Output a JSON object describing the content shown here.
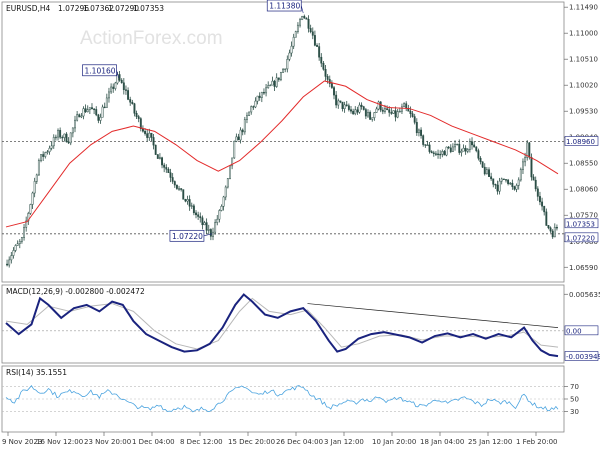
{
  "watermark": "ActionForex.com",
  "chart_data": [
    {
      "type": "candlestick",
      "title": "EURUSD,H4",
      "ohlc_header": [
        "1.07296",
        "1.07362",
        "1.07290",
        "1.07353"
      ],
      "ylim": [
        1.0635,
        1.1155
      ],
      "y_ticks": [
        "1.11490",
        "1.11000",
        "1.10510",
        "1.10020",
        "1.09530",
        "1.09040",
        "1.08550",
        "1.08060",
        "1.07570",
        "1.07080",
        "1.06590"
      ],
      "x_ticks": [
        "9 Nov 2023",
        "16 Nov 12:00",
        "23 Nov 20:00",
        "1 Dec 04:00",
        "8 Dec 12:00",
        "15 Dec 20:00",
        "26 Dec 04:00",
        "3 Jan 12:00",
        "10 Jan 20:00",
        "18 Jan 04:00",
        "25 Jan 12:00",
        "1 Feb 20:00"
      ],
      "price_path": [
        [
          0,
          1.0665
        ],
        [
          4,
          1.069
        ],
        [
          8,
          1.071
        ],
        [
          12,
          1.078
        ],
        [
          16,
          1.086
        ],
        [
          20,
          1.088
        ],
        [
          25,
          1.091
        ],
        [
          30,
          1.09
        ],
        [
          35,
          1.095
        ],
        [
          40,
          1.096
        ],
        [
          44,
          1.094
        ],
        [
          48,
          1.0975
        ],
        [
          53,
          1.1016
        ],
        [
          57,
          1.099
        ],
        [
          61,
          1.095
        ],
        [
          65,
          1.092
        ],
        [
          68,
          1.0905
        ],
        [
          72,
          1.087
        ],
        [
          76,
          1.0845
        ],
        [
          80,
          1.082
        ],
        [
          84,
          1.079
        ],
        [
          88,
          1.077
        ],
        [
          93,
          1.074
        ],
        [
          97,
          1.0722
        ],
        [
          101,
          1.076
        ],
        [
          105,
          1.082
        ],
        [
          108,
          1.089
        ],
        [
          112,
          1.092
        ],
        [
          116,
          1.096
        ],
        [
          120,
          1.098
        ],
        [
          124,
          1.0995
        ],
        [
          128,
          1.101
        ],
        [
          132,
          1.104
        ],
        [
          136,
          1.1085
        ],
        [
          140,
          1.1138
        ],
        [
          144,
          1.111
        ],
        [
          148,
          1.106
        ],
        [
          152,
          1.101
        ],
        [
          156,
          1.097
        ],
        [
          160,
          1.096
        ],
        [
          164,
          1.095
        ],
        [
          168,
          1.096
        ],
        [
          172,
          1.094
        ],
        [
          176,
          1.0965
        ],
        [
          180,
          1.095
        ],
        [
          184,
          1.0945
        ],
        [
          188,
          1.096
        ],
        [
          192,
          1.094
        ],
        [
          196,
          1.09
        ],
        [
          200,
          1.088
        ],
        [
          204,
          1.087
        ],
        [
          208,
          1.088
        ],
        [
          212,
          1.0885
        ],
        [
          216,
          1.088
        ],
        [
          220,
          1.0895
        ],
        [
          224,
          1.085
        ],
        [
          228,
          1.083
        ],
        [
          232,
          1.081
        ],
        [
          236,
          1.083
        ],
        [
          240,
          1.08
        ],
        [
          244,
          1.085
        ],
        [
          246,
          1.089
        ],
        [
          248,
          1.083
        ],
        [
          252,
          1.079
        ],
        [
          255,
          1.074
        ],
        [
          258,
          1.0724
        ],
        [
          260,
          1.0735
        ]
      ],
      "ma_path": [
        [
          0,
          1.0735
        ],
        [
          10,
          1.0745
        ],
        [
          20,
          1.08
        ],
        [
          30,
          1.0855
        ],
        [
          40,
          1.089
        ],
        [
          50,
          1.0915
        ],
        [
          60,
          1.0925
        ],
        [
          70,
          1.0915
        ],
        [
          80,
          1.089
        ],
        [
          90,
          1.086
        ],
        [
          100,
          1.084
        ],
        [
          110,
          1.086
        ],
        [
          120,
          1.0895
        ],
        [
          130,
          1.0935
        ],
        [
          140,
          1.098
        ],
        [
          150,
          1.101
        ],
        [
          160,
          1.1
        ],
        [
          170,
          1.0975
        ],
        [
          180,
          1.096
        ],
        [
          190,
          1.0958
        ],
        [
          200,
          1.0945
        ],
        [
          210,
          1.0925
        ],
        [
          220,
          1.091
        ],
        [
          230,
          1.0895
        ],
        [
          240,
          1.088
        ],
        [
          250,
          1.086
        ],
        [
          260,
          1.0835
        ]
      ],
      "hlines": [
        1.0896,
        1.0722
      ],
      "annotations": [
        {
          "label": "1.10160",
          "bar": 53,
          "value": 1.1016
        },
        {
          "label": "1.11380",
          "bar": 140,
          "value": 1.1138
        },
        {
          "label": "1.07220",
          "bar": 97,
          "value": 1.0722
        }
      ],
      "price_tags": [
        {
          "label": "1.08960",
          "value": 1.0896
        },
        {
          "label": "1.07353",
          "value": 1.07353
        },
        {
          "label": "1.07220",
          "value": 1.0722
        }
      ]
    },
    {
      "type": "line",
      "title": "MACD(12,26,9) -0.002800 -0.002472",
      "ylim": [
        -0.0048,
        0.0066
      ],
      "y_ticks": [
        "0.005635",
        "0.00"
      ],
      "tags": [
        {
          "label": "0.00",
          "value": 0.0
        },
        {
          "label": "-0.003949",
          "value": -0.003949
        }
      ],
      "macd_path": [
        [
          0,
          0.0012
        ],
        [
          6,
          -0.0005
        ],
        [
          12,
          0.001
        ],
        [
          16,
          0.005
        ],
        [
          20,
          0.004
        ],
        [
          26,
          0.002
        ],
        [
          32,
          0.0035
        ],
        [
          38,
          0.004
        ],
        [
          44,
          0.003
        ],
        [
          50,
          0.0045
        ],
        [
          55,
          0.004
        ],
        [
          60,
          0.0015
        ],
        [
          66,
          -0.0005
        ],
        [
          72,
          -0.0015
        ],
        [
          78,
          -0.0025
        ],
        [
          84,
          -0.0032
        ],
        [
          90,
          -0.003
        ],
        [
          96,
          -0.002
        ],
        [
          102,
          0.0005
        ],
        [
          108,
          0.004
        ],
        [
          112,
          0.0056
        ],
        [
          116,
          0.0045
        ],
        [
          122,
          0.0025
        ],
        [
          128,
          0.002
        ],
        [
          134,
          0.003
        ],
        [
          140,
          0.0035
        ],
        [
          146,
          0.0015
        ],
        [
          152,
          -0.0015
        ],
        [
          156,
          -0.0032
        ],
        [
          160,
          -0.0028
        ],
        [
          166,
          -0.0012
        ],
        [
          172,
          -0.0005
        ],
        [
          178,
          -0.0002
        ],
        [
          184,
          -0.0006
        ],
        [
          190,
          -0.001
        ],
        [
          196,
          -0.0018
        ],
        [
          202,
          -0.0008
        ],
        [
          208,
          -0.0004
        ],
        [
          214,
          -0.001
        ],
        [
          220,
          -0.0005
        ],
        [
          226,
          -0.0012
        ],
        [
          232,
          -0.0005
        ],
        [
          238,
          -0.001
        ],
        [
          244,
          0.0005
        ],
        [
          248,
          -0.0015
        ],
        [
          252,
          -0.003
        ],
        [
          256,
          -0.0037
        ],
        [
          260,
          -0.0039
        ]
      ],
      "signal_path": [
        [
          0,
          0.0015
        ],
        [
          10,
          0.001
        ],
        [
          20,
          0.0038
        ],
        [
          30,
          0.003
        ],
        [
          40,
          0.0038
        ],
        [
          50,
          0.0042
        ],
        [
          60,
          0.003
        ],
        [
          70,
          0.0
        ],
        [
          80,
          -0.002
        ],
        [
          90,
          -0.0028
        ],
        [
          100,
          -0.0015
        ],
        [
          110,
          0.003
        ],
        [
          116,
          0.005
        ],
        [
          124,
          0.003
        ],
        [
          134,
          0.0025
        ],
        [
          142,
          0.0032
        ],
        [
          150,
          0.0005
        ],
        [
          158,
          -0.0025
        ],
        [
          166,
          -0.002
        ],
        [
          176,
          -0.0008
        ],
        [
          186,
          -0.0006
        ],
        [
          196,
          -0.0014
        ],
        [
          206,
          -0.0008
        ],
        [
          216,
          -0.0008
        ],
        [
          226,
          -0.001
        ],
        [
          236,
          -0.0008
        ],
        [
          244,
          -0.0002
        ],
        [
          252,
          -0.0022
        ],
        [
          260,
          -0.0025
        ]
      ],
      "trendline": [
        [
          142,
          0.0042
        ],
        [
          260,
          0.0005
        ]
      ]
    },
    {
      "type": "line",
      "title": "RSI(14) 35.1551",
      "ylim": [
        0,
        100
      ],
      "y_ticks": [
        "70",
        "50",
        "30"
      ],
      "rsi_path": [
        [
          0,
          55
        ],
        [
          4,
          45
        ],
        [
          8,
          62
        ],
        [
          12,
          70
        ],
        [
          16,
          60
        ],
        [
          20,
          66
        ],
        [
          24,
          55
        ],
        [
          28,
          60
        ],
        [
          32,
          64
        ],
        [
          36,
          56
        ],
        [
          40,
          61
        ],
        [
          44,
          54
        ],
        [
          48,
          62
        ],
        [
          52,
          58
        ],
        [
          56,
          47
        ],
        [
          60,
          40
        ],
        [
          64,
          36
        ],
        [
          68,
          33
        ],
        [
          72,
          42
        ],
        [
          76,
          30
        ],
        [
          80,
          35
        ],
        [
          84,
          38
        ],
        [
          88,
          28
        ],
        [
          92,
          34
        ],
        [
          96,
          33
        ],
        [
          100,
          42
        ],
        [
          104,
          55
        ],
        [
          108,
          65
        ],
        [
          112,
          72
        ],
        [
          116,
          60
        ],
        [
          120,
          57
        ],
        [
          124,
          64
        ],
        [
          128,
          58
        ],
        [
          132,
          63
        ],
        [
          136,
          68
        ],
        [
          140,
          70
        ],
        [
          144,
          56
        ],
        [
          148,
          48
        ],
        [
          152,
          36
        ],
        [
          156,
          40
        ],
        [
          160,
          46
        ],
        [
          164,
          43
        ],
        [
          168,
          50
        ],
        [
          172,
          47
        ],
        [
          176,
          55
        ],
        [
          180,
          45
        ],
        [
          184,
          52
        ],
        [
          188,
          48
        ],
        [
          192,
          42
        ],
        [
          196,
          38
        ],
        [
          200,
          44
        ],
        [
          204,
          50
        ],
        [
          208,
          42
        ],
        [
          212,
          48
        ],
        [
          216,
          52
        ],
        [
          220,
          46
        ],
        [
          224,
          40
        ],
        [
          228,
          50
        ],
        [
          232,
          44
        ],
        [
          236,
          46
        ],
        [
          240,
          38
        ],
        [
          244,
          57
        ],
        [
          248,
          42
        ],
        [
          252,
          36
        ],
        [
          256,
          33
        ],
        [
          260,
          35
        ]
      ]
    }
  ]
}
